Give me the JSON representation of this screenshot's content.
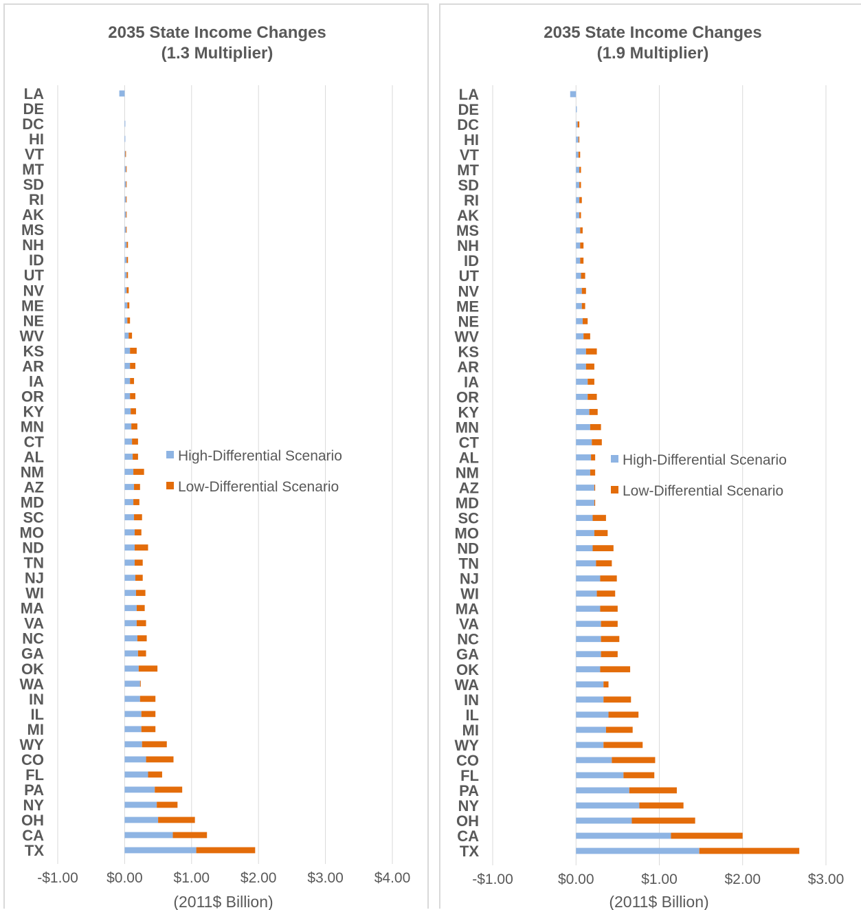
{
  "chart_data": [
    {
      "type": "bar",
      "orientation": "horizontal",
      "stacked": true,
      "title": "2035 State Income Changes",
      "subtitle": "(1.3 Multiplier)",
      "xlabel": "(2011$ Billion)",
      "ylabel": "",
      "xlim": [
        -1,
        4
      ],
      "x_ticks": [
        -1,
        0,
        1,
        2,
        3,
        4
      ],
      "x_tick_labels": [
        "-$1.00",
        "$0.00",
        "$1.00",
        "$2.00",
        "$3.00",
        "$4.00"
      ],
      "grid": "vertical",
      "legend": "center-right",
      "categories": [
        "LA",
        "DE",
        "DC",
        "HI",
        "VT",
        "MT",
        "SD",
        "RI",
        "AK",
        "MS",
        "NH",
        "ID",
        "UT",
        "NV",
        "ME",
        "NE",
        "WV",
        "KS",
        "AR",
        "IA",
        "OR",
        "KY",
        "MN",
        "CT",
        "AL",
        "NM",
        "AZ",
        "MD",
        "SC",
        "MO",
        "ND",
        "TN",
        "NJ",
        "WI",
        "MA",
        "VA",
        "NC",
        "GA",
        "OK",
        "WA",
        "IN",
        "IL",
        "MI",
        "WY",
        "CO",
        "FL",
        "PA",
        "NY",
        "OH",
        "CA",
        "TX"
      ],
      "series": [
        {
          "name": "High-Differential Scenario",
          "color": "#8eb4e3",
          "values": [
            -0.08,
            0.0,
            0.01,
            0.01,
            0.01,
            0.02,
            0.02,
            0.02,
            0.02,
            0.02,
            0.03,
            0.03,
            0.03,
            0.03,
            0.04,
            0.04,
            0.06,
            0.08,
            0.08,
            0.08,
            0.08,
            0.09,
            0.1,
            0.11,
            0.12,
            0.13,
            0.14,
            0.13,
            0.14,
            0.15,
            0.15,
            0.15,
            0.16,
            0.17,
            0.18,
            0.18,
            0.19,
            0.2,
            0.21,
            0.23,
            0.23,
            0.25,
            0.25,
            0.26,
            0.32,
            0.35,
            0.45,
            0.48,
            0.5,
            0.72,
            1.07
          ]
        },
        {
          "name": "Low-Differential Scenario",
          "color": "#e36c0a",
          "values": [
            0.0,
            0.0,
            0.0,
            0.0,
            0.01,
            0.01,
            0.01,
            0.01,
            0.01,
            0.01,
            0.02,
            0.02,
            0.02,
            0.03,
            0.03,
            0.04,
            0.05,
            0.1,
            0.08,
            0.06,
            0.08,
            0.08,
            0.09,
            0.09,
            0.08,
            0.16,
            0.09,
            0.09,
            0.12,
            0.1,
            0.2,
            0.12,
            0.11,
            0.14,
            0.12,
            0.14,
            0.14,
            0.12,
            0.28,
            0.01,
            0.23,
            0.21,
            0.21,
            0.37,
            0.41,
            0.21,
            0.41,
            0.31,
            0.55,
            0.51,
            0.88
          ]
        }
      ]
    },
    {
      "type": "bar",
      "orientation": "horizontal",
      "stacked": true,
      "title": "2035 State Income Changes",
      "subtitle": "(1.9 Multiplier)",
      "xlabel": "(2011$ Billion)",
      "ylabel": "",
      "xlim": [
        -1,
        3
      ],
      "x_ticks": [
        -1,
        0,
        1,
        2,
        3
      ],
      "x_tick_labels": [
        "-$1.00",
        "$0.00",
        "$1.00",
        "$2.00",
        "$3.00"
      ],
      "grid": "vertical",
      "legend": "center-right",
      "categories": [
        "LA",
        "DE",
        "DC",
        "HI",
        "VT",
        "MT",
        "SD",
        "RI",
        "AK",
        "MS",
        "NH",
        "ID",
        "UT",
        "NV",
        "ME",
        "NE",
        "WV",
        "KS",
        "AR",
        "IA",
        "OR",
        "KY",
        "MN",
        "CT",
        "AL",
        "NM",
        "AZ",
        "MD",
        "SC",
        "MO",
        "ND",
        "TN",
        "NJ",
        "WI",
        "MA",
        "VA",
        "NC",
        "GA",
        "OK",
        "WA",
        "IN",
        "IL",
        "MI",
        "WY",
        "CO",
        "FL",
        "PA",
        "NY",
        "OH",
        "CA",
        "TX"
      ],
      "series": [
        {
          "name": "High-Differential Scenario",
          "color": "#8eb4e3",
          "values": [
            -0.07,
            0.01,
            0.02,
            0.03,
            0.03,
            0.04,
            0.04,
            0.04,
            0.04,
            0.05,
            0.05,
            0.05,
            0.06,
            0.07,
            0.07,
            0.08,
            0.09,
            0.12,
            0.12,
            0.14,
            0.14,
            0.16,
            0.17,
            0.19,
            0.18,
            0.17,
            0.22,
            0.22,
            0.2,
            0.22,
            0.2,
            0.24,
            0.29,
            0.25,
            0.29,
            0.3,
            0.3,
            0.3,
            0.29,
            0.33,
            0.33,
            0.39,
            0.36,
            0.33,
            0.43,
            0.57,
            0.64,
            0.76,
            0.67,
            1.14,
            1.48
          ]
        },
        {
          "name": "Low-Differential Scenario",
          "color": "#e36c0a",
          "values": [
            0.0,
            0.0,
            0.02,
            0.01,
            0.02,
            0.02,
            0.02,
            0.03,
            0.02,
            0.03,
            0.04,
            0.04,
            0.05,
            0.05,
            0.04,
            0.06,
            0.08,
            0.13,
            0.1,
            0.08,
            0.11,
            0.1,
            0.13,
            0.12,
            0.05,
            0.06,
            0.01,
            0.01,
            0.16,
            0.16,
            0.25,
            0.19,
            0.2,
            0.22,
            0.21,
            0.2,
            0.22,
            0.2,
            0.36,
            0.06,
            0.33,
            0.36,
            0.32,
            0.47,
            0.52,
            0.37,
            0.57,
            0.53,
            0.76,
            0.86,
            1.2
          ]
        }
      ]
    }
  ]
}
